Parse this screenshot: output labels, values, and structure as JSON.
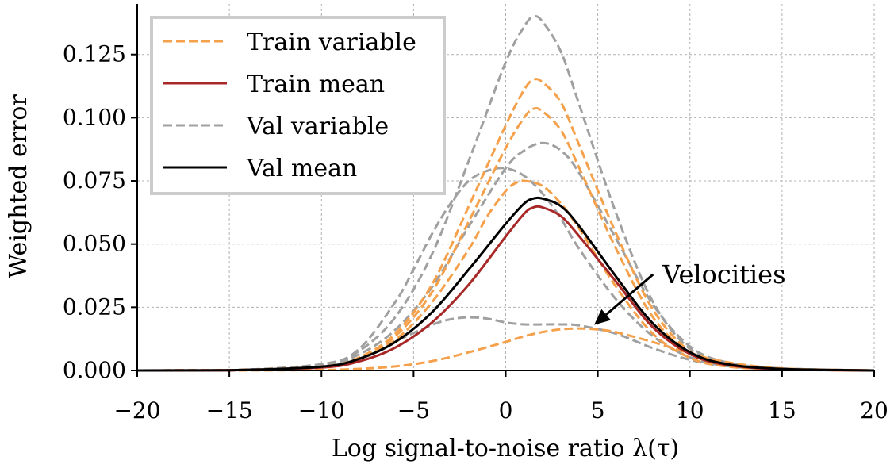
{
  "chart_data": {
    "type": "line",
    "xlabel": "Log signal-to-noise ratio λ(τ)",
    "ylabel": "Weighted error",
    "xlim": [
      -20,
      20
    ],
    "ylim": [
      0,
      0.145
    ],
    "xticks": [
      -20,
      -15,
      -10,
      -5,
      0,
      5,
      10,
      15,
      20
    ],
    "xtick_labels": [
      "−20",
      "−15",
      "−10",
      "−5",
      "0",
      "5",
      "10",
      "15",
      "20"
    ],
    "yticks": [
      0,
      0.025,
      0.05,
      0.075,
      0.1,
      0.125
    ],
    "ytick_labels": [
      "0.000",
      "0.025",
      "0.050",
      "0.075",
      "0.100",
      "0.125"
    ],
    "grid": true,
    "legend_position": "top-left",
    "legend": [
      {
        "label": "Train variable",
        "color": "#f5a04a",
        "style": "dashed"
      },
      {
        "label": "Train mean",
        "color": "#a82828",
        "style": "solid"
      },
      {
        "label": "Val variable",
        "color": "#a0a0a0",
        "style": "dashed"
      },
      {
        "label": "Val mean",
        "color": "#000000",
        "style": "solid"
      }
    ],
    "annotation": {
      "text": "Velocities",
      "text_at": [
        8,
        0.038
      ],
      "arrow_to": [
        4.8,
        0.018
      ]
    },
    "series": [
      {
        "group": "Val variable",
        "color": "#a0a0a0",
        "dash": true,
        "x": [
          -20,
          -15,
          -10,
          -8,
          -6,
          -4,
          -2,
          0,
          1,
          1.5,
          2,
          3,
          4,
          6,
          8,
          10,
          12,
          15,
          20
        ],
        "y": [
          0,
          0.0001,
          0.002,
          0.0075,
          0.021,
          0.046,
          0.083,
          0.122,
          0.136,
          0.14,
          0.138,
          0.126,
          0.105,
          0.062,
          0.027,
          0.0085,
          0.003,
          0.0008,
          0
        ]
      },
      {
        "group": "Val variable",
        "color": "#a0a0a0",
        "dash": true,
        "x": [
          -20,
          -15,
          -10,
          -8,
          -6,
          -4,
          -2,
          0,
          1,
          2,
          3,
          4,
          6,
          8,
          10,
          12,
          15,
          20
        ],
        "y": [
          0,
          0.0001,
          0.002,
          0.0062,
          0.016,
          0.033,
          0.057,
          0.08,
          0.087,
          0.09,
          0.087,
          0.078,
          0.052,
          0.026,
          0.0095,
          0.0032,
          0.0008,
          0
        ]
      },
      {
        "group": "Val variable",
        "color": "#a0a0a0",
        "dash": true,
        "x": [
          -20,
          -15,
          -10,
          -8,
          -6,
          -5,
          -4,
          -3,
          -2,
          -1,
          0,
          1,
          2,
          3,
          4,
          6,
          8,
          10,
          12,
          15,
          20
        ],
        "y": [
          0,
          0.0001,
          0.0025,
          0.0082,
          0.027,
          0.04,
          0.054,
          0.066,
          0.075,
          0.079,
          0.08,
          0.077,
          0.07,
          0.06,
          0.048,
          0.028,
          0.0135,
          0.0052,
          0.0018,
          0.0004,
          0
        ]
      },
      {
        "group": "Val variable",
        "color": "#a0a0a0",
        "dash": true,
        "x": [
          -20,
          -15,
          -10,
          -8,
          -6,
          -4,
          -3,
          -2,
          -1,
          0,
          1,
          2,
          3,
          4,
          6,
          8,
          10,
          12,
          15,
          20
        ],
        "y": [
          0,
          0.0001,
          0.0015,
          0.0045,
          0.0115,
          0.018,
          0.0202,
          0.021,
          0.0205,
          0.019,
          0.0182,
          0.0182,
          0.0182,
          0.0178,
          0.0145,
          0.0088,
          0.0042,
          0.0017,
          0.0004,
          0
        ]
      },
      {
        "group": "Train variable",
        "color": "#f5a04a",
        "dash": true,
        "x": [
          -20,
          -15,
          -10,
          -8,
          -6,
          -4,
          -2,
          0,
          1,
          1.5,
          2,
          3,
          4,
          6,
          8,
          10,
          12,
          15,
          20
        ],
        "y": [
          0,
          0.0001,
          0.0015,
          0.005,
          0.0145,
          0.034,
          0.065,
          0.097,
          0.111,
          0.115,
          0.114,
          0.106,
          0.089,
          0.054,
          0.024,
          0.0075,
          0.0025,
          0.0005,
          0
        ]
      },
      {
        "group": "Train variable",
        "color": "#f5a04a",
        "dash": true,
        "x": [
          -20,
          -15,
          -10,
          -8,
          -6,
          -4,
          -2,
          0,
          1,
          1.5,
          2,
          3,
          4,
          6,
          8,
          10,
          12,
          15,
          20
        ],
        "y": [
          0,
          0.0001,
          0.0015,
          0.0047,
          0.0135,
          0.031,
          0.059,
          0.088,
          0.1,
          0.1035,
          0.1025,
          0.095,
          0.08,
          0.048,
          0.021,
          0.0068,
          0.0022,
          0.0005,
          0
        ]
      },
      {
        "group": "Train variable",
        "color": "#f5a04a",
        "dash": true,
        "x": [
          -20,
          -15,
          -10,
          -8,
          -6,
          -4,
          -2,
          -1,
          0,
          0.5,
          1,
          2,
          3,
          4,
          6,
          8,
          10,
          12,
          15,
          20
        ],
        "y": [
          0,
          0.0001,
          0.0015,
          0.0045,
          0.012,
          0.027,
          0.048,
          0.061,
          0.071,
          0.074,
          0.075,
          0.073,
          0.066,
          0.056,
          0.033,
          0.0145,
          0.005,
          0.0016,
          0.0004,
          0
        ]
      },
      {
        "group": "Train variable",
        "color": "#f5a04a",
        "dash": true,
        "x": [
          -20,
          -15,
          -10,
          -8,
          -6,
          -4,
          -2,
          0,
          1,
          2,
          3,
          4,
          5,
          6,
          8,
          10,
          12,
          15,
          20
        ],
        "y": [
          0,
          0,
          0.0002,
          0.0006,
          0.0016,
          0.0037,
          0.0072,
          0.0113,
          0.0135,
          0.0152,
          0.0163,
          0.0166,
          0.0162,
          0.0151,
          0.0112,
          0.0068,
          0.0033,
          0.0008,
          0
        ]
      },
      {
        "group": "Train mean",
        "color": "#a82828",
        "dash": false,
        "x": [
          -20,
          -15,
          -10,
          -8,
          -6,
          -4,
          -2,
          0,
          1,
          1.5,
          2,
          3,
          4,
          6,
          8,
          10,
          12,
          15,
          20
        ],
        "y": [
          0,
          0.0001,
          0.0012,
          0.0035,
          0.009,
          0.019,
          0.034,
          0.053,
          0.062,
          0.0645,
          0.0645,
          0.061,
          0.053,
          0.035,
          0.017,
          0.0065,
          0.0022,
          0.0005,
          0
        ]
      },
      {
        "group": "Val mean",
        "color": "#000000",
        "dash": false,
        "x": [
          -20,
          -15,
          -10,
          -8,
          -6,
          -4,
          -2,
          0,
          1,
          1.5,
          2,
          3,
          4,
          6,
          8,
          10,
          12,
          15,
          20
        ],
        "y": [
          0,
          0.0001,
          0.0015,
          0.0045,
          0.0112,
          0.023,
          0.04,
          0.058,
          0.066,
          0.068,
          0.068,
          0.065,
          0.057,
          0.037,
          0.0185,
          0.0072,
          0.0025,
          0.0006,
          0
        ]
      }
    ]
  }
}
